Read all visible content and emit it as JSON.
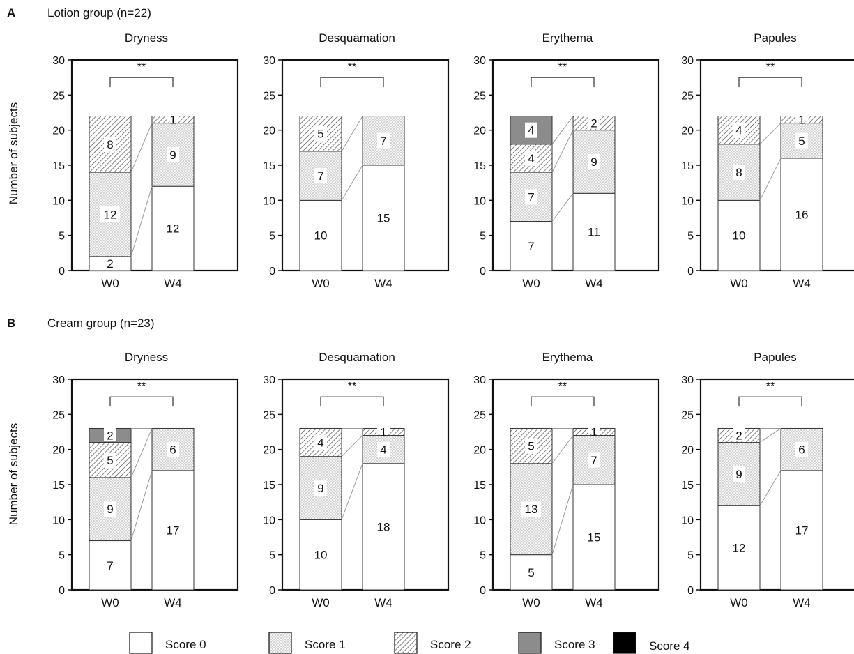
{
  "panels": [
    {
      "letter": "A",
      "title": "Lotion group (n=22)",
      "ylabel": "Number of subjects"
    },
    {
      "letter": "B",
      "title": "Cream group (n=23)",
      "ylabel": "Number of subjects"
    }
  ],
  "legend": [
    {
      "label": "Score 0",
      "pattern": "score0"
    },
    {
      "label": "Score 1",
      "pattern": "score1"
    },
    {
      "label": "Score 2",
      "pattern": "score2"
    },
    {
      "label": "Score 3",
      "pattern": "score3"
    },
    {
      "label": "Score 4",
      "pattern": "score4"
    }
  ],
  "colors": {
    "score0": "#ffffff",
    "score1": "#f2f2f2",
    "score2": "#ffffff",
    "score3": "#8c8c8c",
    "score4": "#000000",
    "axis": "#111111",
    "connector": "#9a9a9a"
  },
  "chart_data": [
    {
      "type": "bar",
      "stacked": true,
      "panel": "A",
      "title": "Dryness",
      "ylim": [
        0,
        30
      ],
      "yticks": [
        0,
        5,
        10,
        15,
        20,
        25,
        30
      ],
      "categories": [
        "W0",
        "W4"
      ],
      "significance": "**",
      "series": [
        {
          "name": "Score 0",
          "values": [
            2,
            12
          ]
        },
        {
          "name": "Score 1",
          "values": [
            12,
            9
          ]
        },
        {
          "name": "Score 2",
          "values": [
            8,
            1
          ]
        },
        {
          "name": "Score 3",
          "values": [
            0,
            0
          ]
        },
        {
          "name": "Score 4",
          "values": [
            0,
            0
          ]
        }
      ]
    },
    {
      "type": "bar",
      "stacked": true,
      "panel": "A",
      "title": "Desquamation",
      "ylim": [
        0,
        30
      ],
      "yticks": [
        0,
        5,
        10,
        15,
        20,
        25,
        30
      ],
      "categories": [
        "W0",
        "W4"
      ],
      "significance": "**",
      "series": [
        {
          "name": "Score 0",
          "values": [
            10,
            15
          ]
        },
        {
          "name": "Score 1",
          "values": [
            7,
            7
          ]
        },
        {
          "name": "Score 2",
          "values": [
            5,
            0
          ]
        },
        {
          "name": "Score 3",
          "values": [
            0,
            0
          ]
        },
        {
          "name": "Score 4",
          "values": [
            0,
            0
          ]
        }
      ]
    },
    {
      "type": "bar",
      "stacked": true,
      "panel": "A",
      "title": "Erythema",
      "ylim": [
        0,
        30
      ],
      "yticks": [
        0,
        5,
        10,
        15,
        20,
        25,
        30
      ],
      "categories": [
        "W0",
        "W4"
      ],
      "significance": "**",
      "series": [
        {
          "name": "Score 0",
          "values": [
            7,
            11
          ]
        },
        {
          "name": "Score 1",
          "values": [
            7,
            9
          ]
        },
        {
          "name": "Score 2",
          "values": [
            4,
            2
          ]
        },
        {
          "name": "Score 3",
          "values": [
            4,
            0
          ]
        },
        {
          "name": "Score 4",
          "values": [
            0,
            0
          ]
        }
      ]
    },
    {
      "type": "bar",
      "stacked": true,
      "panel": "A",
      "title": "Papules",
      "ylim": [
        0,
        30
      ],
      "yticks": [
        0,
        5,
        10,
        15,
        20,
        25,
        30
      ],
      "categories": [
        "W0",
        "W4"
      ],
      "significance": "**",
      "series": [
        {
          "name": "Score 0",
          "values": [
            10,
            16
          ]
        },
        {
          "name": "Score 1",
          "values": [
            8,
            5
          ]
        },
        {
          "name": "Score 2",
          "values": [
            4,
            1
          ]
        },
        {
          "name": "Score 3",
          "values": [
            0,
            0
          ]
        },
        {
          "name": "Score 4",
          "values": [
            0,
            0
          ]
        }
      ]
    },
    {
      "type": "bar",
      "stacked": true,
      "panel": "B",
      "title": "Dryness",
      "ylim": [
        0,
        30
      ],
      "yticks": [
        0,
        5,
        10,
        15,
        20,
        25,
        30
      ],
      "categories": [
        "W0",
        "W4"
      ],
      "significance": "**",
      "series": [
        {
          "name": "Score 0",
          "values": [
            7,
            17
          ]
        },
        {
          "name": "Score 1",
          "values": [
            9,
            6
          ]
        },
        {
          "name": "Score 2",
          "values": [
            5,
            0
          ]
        },
        {
          "name": "Score 3",
          "values": [
            2,
            0
          ]
        },
        {
          "name": "Score 4",
          "values": [
            0,
            0
          ]
        }
      ]
    },
    {
      "type": "bar",
      "stacked": true,
      "panel": "B",
      "title": "Desquamation",
      "ylim": [
        0,
        30
      ],
      "yticks": [
        0,
        5,
        10,
        15,
        20,
        25,
        30
      ],
      "categories": [
        "W0",
        "W4"
      ],
      "significance": "**",
      "series": [
        {
          "name": "Score 0",
          "values": [
            10,
            18
          ]
        },
        {
          "name": "Score 1",
          "values": [
            9,
            4
          ]
        },
        {
          "name": "Score 2",
          "values": [
            4,
            1
          ]
        },
        {
          "name": "Score 3",
          "values": [
            0,
            0
          ]
        },
        {
          "name": "Score 4",
          "values": [
            0,
            0
          ]
        }
      ]
    },
    {
      "type": "bar",
      "stacked": true,
      "panel": "B",
      "title": "Erythema",
      "ylim": [
        0,
        30
      ],
      "yticks": [
        0,
        5,
        10,
        15,
        20,
        25,
        30
      ],
      "categories": [
        "W0",
        "W4"
      ],
      "significance": "**",
      "series": [
        {
          "name": "Score 0",
          "values": [
            5,
            15
          ]
        },
        {
          "name": "Score 1",
          "values": [
            13,
            7
          ]
        },
        {
          "name": "Score 2",
          "values": [
            5,
            1
          ]
        },
        {
          "name": "Score 3",
          "values": [
            0,
            0
          ]
        },
        {
          "name": "Score 4",
          "values": [
            0,
            0
          ]
        }
      ]
    },
    {
      "type": "bar",
      "stacked": true,
      "panel": "B",
      "title": "Papules",
      "ylim": [
        0,
        30
      ],
      "yticks": [
        0,
        5,
        10,
        15,
        20,
        25,
        30
      ],
      "categories": [
        "W0",
        "W4"
      ],
      "significance": "**",
      "series": [
        {
          "name": "Score 0",
          "values": [
            12,
            17
          ]
        },
        {
          "name": "Score 1",
          "values": [
            9,
            6
          ]
        },
        {
          "name": "Score 2",
          "values": [
            2,
            0
          ]
        },
        {
          "name": "Score 3",
          "values": [
            0,
            0
          ]
        },
        {
          "name": "Score 4",
          "values": [
            0,
            0
          ]
        }
      ]
    }
  ]
}
